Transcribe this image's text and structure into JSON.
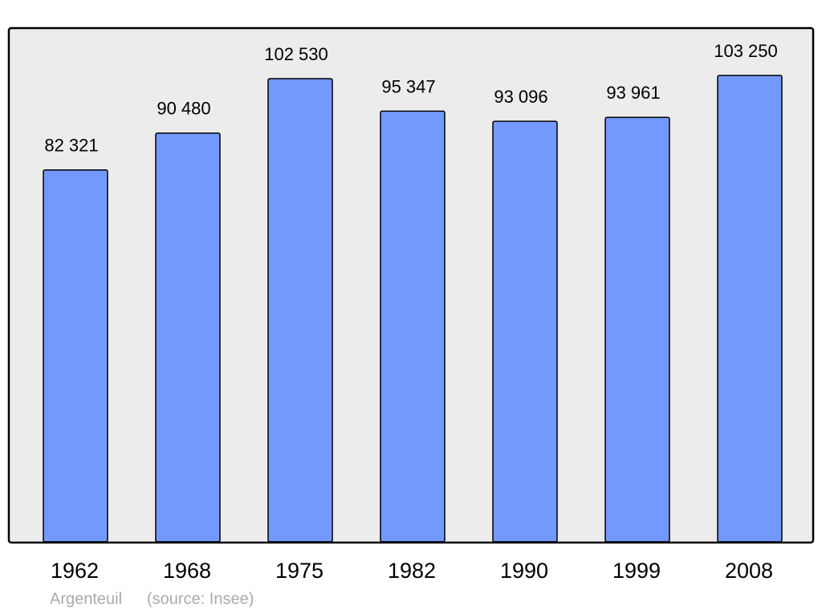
{
  "chart_data": {
    "type": "bar",
    "categories": [
      "1962",
      "1968",
      "1975",
      "1982",
      "1990",
      "1999",
      "2008"
    ],
    "values": [
      82321,
      90480,
      102530,
      95347,
      93096,
      93961,
      103250
    ],
    "value_labels": [
      "82 321",
      "90 480",
      "102 530",
      "95 347",
      "93 096",
      "93 961",
      "103 250"
    ],
    "color": "#7399ff",
    "place": "Argenteuil",
    "source": "(source: Insee)"
  }
}
